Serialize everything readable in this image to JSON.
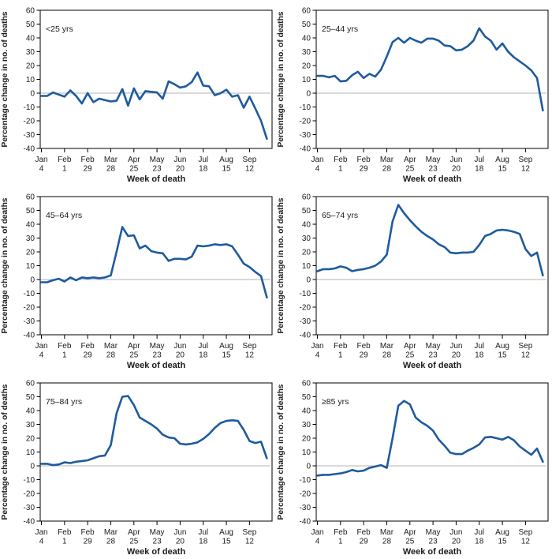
{
  "figure": {
    "layout": "2x3-grid",
    "xlabel": "Week of death",
    "ylabel": "Percentage change in no. of deaths",
    "ylim": [
      -40,
      60
    ],
    "yticks": [
      60,
      50,
      40,
      30,
      20,
      10,
      0,
      -10,
      -20,
      -30,
      -40
    ],
    "n_points": 40,
    "xticks": [
      {
        "index": 0,
        "line1": "Jan",
        "line2": "4"
      },
      {
        "index": 4,
        "line1": "Feb",
        "line2": "1"
      },
      {
        "index": 8,
        "line1": "Feb",
        "line2": "29"
      },
      {
        "index": 12,
        "line1": "Mar",
        "line2": "28"
      },
      {
        "index": 16,
        "line1": "Apr",
        "line2": "25"
      },
      {
        "index": 20,
        "line1": "May",
        "line2": "23"
      },
      {
        "index": 24,
        "line1": "Jun",
        "line2": "20"
      },
      {
        "index": 28,
        "line1": "Jul",
        "line2": "18"
      },
      {
        "index": 32,
        "line1": "Aug",
        "line2": "15"
      },
      {
        "index": 36,
        "line1": "Sep",
        "line2": "12"
      }
    ]
  },
  "colors": {
    "line": "#1e5b9e",
    "zero_line": "#b3b3b3",
    "axis": "#000000",
    "text": "#1c1c1c"
  },
  "chart_data": [
    {
      "type": "line",
      "label": "<25 yrs",
      "xlabel": "Week of death",
      "ylabel": "Percentage change in no. of deaths",
      "ylim": [
        -40,
        60
      ],
      "values": [
        -2,
        -2,
        0.5,
        -1,
        -2.5,
        2,
        -2,
        -7.5,
        0,
        -6.5,
        -4,
        -5,
        -6,
        -5.5,
        3,
        -9,
        3.5,
        -4.5,
        1.5,
        1,
        0.5,
        -4,
        8.5,
        6.5,
        4,
        5,
        8,
        15,
        5.5,
        5,
        -1.5,
        0,
        2.5,
        -2.5,
        -1.5,
        -10.5,
        -2.5,
        -11,
        -20,
        -33
      ]
    },
    {
      "type": "line",
      "label": "25–44 yrs",
      "xlabel": "Week of death",
      "ylabel": "Percentage change in no. of deaths",
      "ylim": [
        -40,
        60
      ],
      "values": [
        12.5,
        12.5,
        11.5,
        12.5,
        8.5,
        9,
        13,
        15.5,
        11,
        14,
        12,
        17,
        26.5,
        37,
        40,
        36.5,
        40,
        38,
        36.5,
        39.5,
        39.5,
        38,
        34.5,
        34,
        31,
        31.5,
        34,
        38,
        47,
        41,
        38,
        31.5,
        36,
        30,
        26,
        23,
        20,
        16.5,
        11,
        -12.5
      ]
    },
    {
      "type": "line",
      "label": "45–64 yrs",
      "xlabel": "Week of death",
      "ylabel": "Percentage change in no. of deaths",
      "ylim": [
        -40,
        60
      ],
      "values": [
        -2,
        -2,
        -0.5,
        0.5,
        -1.5,
        1.5,
        -0.5,
        1.5,
        1,
        1.5,
        1,
        1.5,
        3,
        20,
        38,
        31.5,
        32,
        22.5,
        24.5,
        20.5,
        19.5,
        19,
        13.5,
        15,
        15,
        14.5,
        16.5,
        24.5,
        24,
        24.5,
        25.5,
        25,
        25.5,
        24,
        18,
        11.5,
        9,
        5.5,
        2.5,
        -13
      ]
    },
    {
      "type": "line",
      "label": "65–74 yrs",
      "xlabel": "Week of death",
      "ylabel": "Percentage change in no. of deaths",
      "ylim": [
        -40,
        60
      ],
      "values": [
        6,
        7.5,
        7.5,
        8,
        9.5,
        8.5,
        6,
        7,
        7.5,
        8.5,
        10,
        13,
        18,
        42,
        54,
        48,
        43,
        38.5,
        34.5,
        31.5,
        29,
        25.5,
        23.5,
        19.5,
        19,
        19.5,
        19.5,
        20,
        25,
        31.5,
        33,
        35.5,
        36,
        35.5,
        34.5,
        33,
        22,
        17,
        19.5,
        3
      ]
    },
    {
      "type": "line",
      "label": "75–84 yrs",
      "xlabel": "Week of death",
      "ylabel": "Percentage change in no. of deaths",
      "ylim": [
        -40,
        60
      ],
      "values": [
        1.5,
        1.5,
        0.5,
        1,
        2.5,
        2,
        3,
        3.5,
        4,
        5.5,
        7,
        7.5,
        15,
        38,
        50,
        50.5,
        44,
        35,
        32.5,
        30,
        27,
        22.5,
        20.5,
        20,
        16,
        15.5,
        16,
        17,
        19.5,
        23,
        27.5,
        31,
        32.5,
        33,
        32.5,
        26,
        18,
        16.5,
        17.5,
        5.5
      ]
    },
    {
      "type": "line",
      "label": "≥85 yrs",
      "xlabel": "Week of death",
      "ylabel": "Percentage change in no. of deaths",
      "ylim": [
        -40,
        60
      ],
      "values": [
        -7,
        -6.5,
        -6.5,
        -6,
        -5.5,
        -4.5,
        -3,
        -4,
        -3.5,
        -1.5,
        -0.5,
        0.5,
        -1.5,
        20,
        43.5,
        47,
        44.5,
        35,
        31.5,
        29,
        25.5,
        19,
        14.5,
        9.5,
        8.5,
        8.5,
        11,
        13,
        15.5,
        20.5,
        21,
        20,
        19,
        21,
        18.5,
        14,
        11,
        8,
        12.5,
        3
      ]
    }
  ]
}
